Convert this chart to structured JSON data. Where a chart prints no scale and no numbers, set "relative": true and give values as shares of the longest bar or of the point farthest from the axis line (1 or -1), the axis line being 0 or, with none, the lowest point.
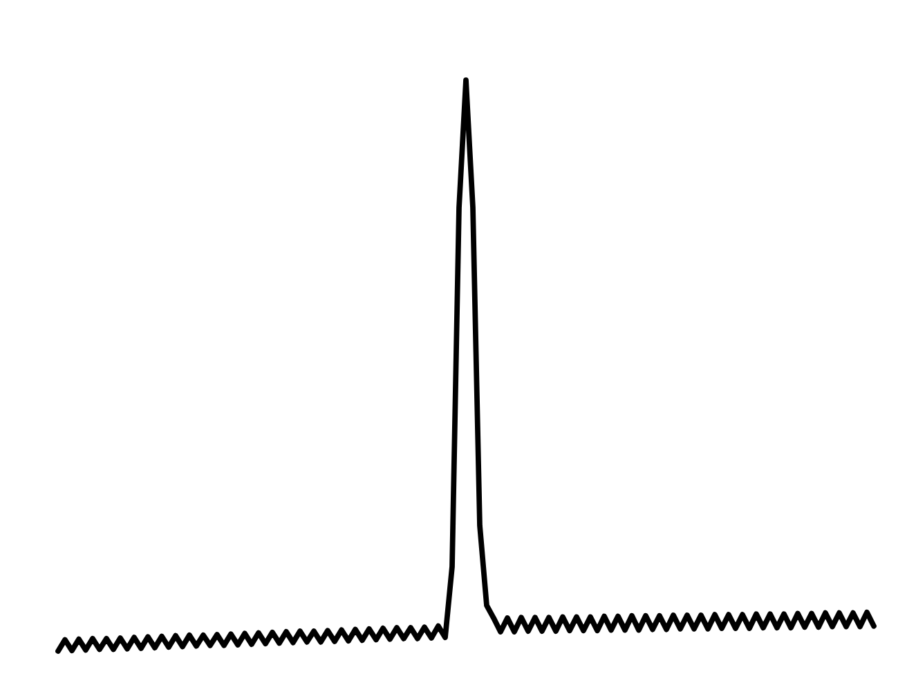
{
  "chart_data": {
    "type": "line",
    "relative": true,
    "marker": "none",
    "line_style": "solid",
    "categories": [
      null,
      null,
      null,
      null,
      null,
      null,
      null,
      null,
      null,
      null,
      null,
      null,
      null,
      null,
      null,
      null,
      null,
      null,
      null,
      null,
      null,
      null,
      null,
      null,
      null,
      null,
      null,
      null,
      null,
      null,
      null,
      null,
      null,
      null,
      null,
      null,
      null,
      null,
      null,
      null,
      null,
      null,
      null,
      null,
      null,
      null,
      null,
      null,
      null,
      null,
      null,
      null,
      null,
      null,
      null,
      null,
      null,
      null,
      null,
      null,
      null,
      null,
      null,
      null,
      null,
      null,
      null,
      null,
      null,
      null,
      null,
      null,
      null,
      null,
      null,
      null,
      null,
      null,
      null,
      null,
      null,
      null,
      null,
      null,
      null,
      null,
      null,
      null,
      null,
      null,
      null,
      null,
      null,
      null,
      null,
      null,
      null,
      null,
      null,
      null,
      null,
      null,
      null,
      null,
      null,
      null,
      null,
      null,
      null,
      null,
      null,
      null,
      null,
      null,
      null,
      null,
      null,
      null,
      null
    ],
    "series": [
      {
        "color": "#000000",
        "values": [
          0,
          0.02,
          0.001,
          0.021,
          0.002,
          0.022,
          0.003,
          0.022,
          0.003,
          0.023,
          0.004,
          0.024,
          0.005,
          0.025,
          0.006,
          0.026,
          0.007,
          0.027,
          0.008,
          0.028,
          0.009,
          0.028,
          0.01,
          0.029,
          0.01,
          0.03,
          0.011,
          0.031,
          0.012,
          0.032,
          0.013,
          0.033,
          0.014,
          0.034,
          0.015,
          0.035,
          0.016,
          0.035,
          0.016,
          0.036,
          0.017,
          0.037,
          0.018,
          0.038,
          0.019,
          0.039,
          0.02,
          0.04,
          0.021,
          0.041,
          0.022,
          0.041,
          0.022,
          0.042,
          0.023,
          0.044,
          0.024,
          0.148,
          0.777,
          1,
          0.777,
          0.22,
          0.08,
          0.058,
          0.034,
          0.058,
          0.034,
          0.059,
          0.035,
          0.059,
          0.035,
          0.059,
          0.035,
          0.06,
          0.036,
          0.06,
          0.036,
          0.06,
          0.036,
          0.061,
          0.037,
          0.061,
          0.037,
          0.062,
          0.037,
          0.062,
          0.038,
          0.062,
          0.038,
          0.063,
          0.039,
          0.063,
          0.039,
          0.063,
          0.039,
          0.064,
          0.04,
          0.064,
          0.04,
          0.064,
          0.04,
          0.065,
          0.041,
          0.065,
          0.041,
          0.065,
          0.041,
          0.066,
          0.042,
          0.066,
          0.042,
          0.067,
          0.043,
          0.067,
          0.043,
          0.067,
          0.043,
          0.068,
          0.044
        ]
      }
    ]
  }
}
